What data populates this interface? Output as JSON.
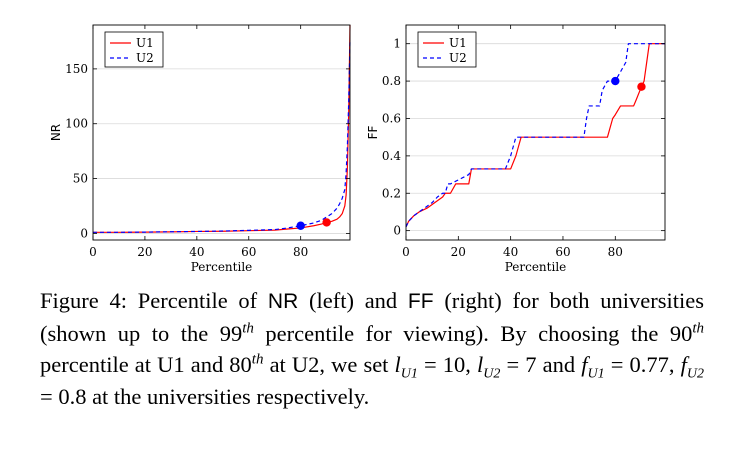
{
  "chart_data": [
    {
      "type": "line",
      "title": "",
      "xlabel": "Percentile",
      "ylabel": "NR",
      "xlim": [
        0,
        99
      ],
      "ylim": [
        -6,
        190
      ],
      "xticks": [
        0,
        20,
        40,
        60,
        80
      ],
      "yticks": [
        0,
        50,
        100,
        150
      ],
      "grid": "horizontal",
      "legend": "top-left",
      "series": [
        {
          "name": "U1",
          "color": "#ff0000",
          "dash": "solid",
          "x": [
            0,
            10,
            20,
            30,
            40,
            50,
            60,
            70,
            75,
            80,
            85,
            88,
            90,
            92,
            94,
            95,
            96,
            97,
            97.5,
            98,
            98.5,
            99
          ],
          "y": [
            1,
            1,
            1.2,
            1.4,
            1.8,
            2,
            2.5,
            3,
            4,
            5,
            7,
            8.5,
            10,
            11,
            13,
            15,
            18,
            25,
            35,
            60,
            110,
            190
          ]
        },
        {
          "name": "U2",
          "color": "#0000ff",
          "dash": "dashed",
          "x": [
            0,
            10,
            20,
            30,
            40,
            50,
            60,
            70,
            75,
            80,
            85,
            88,
            90,
            92,
            94,
            95,
            96,
            97,
            97.5,
            98,
            98.5,
            99
          ],
          "y": [
            1,
            1,
            1.2,
            1.5,
            1.8,
            2.2,
            2.8,
            3.5,
            5,
            7,
            9.5,
            12,
            15,
            18,
            23,
            27,
            32,
            40,
            55,
            80,
            120,
            175
          ]
        }
      ],
      "markers": [
        {
          "x": 80,
          "y": 7,
          "color": "#0000ff"
        },
        {
          "x": 90,
          "y": 10,
          "color": "#ff0000"
        }
      ]
    },
    {
      "type": "line",
      "title": "",
      "xlabel": "Percentile",
      "ylabel": "FF",
      "xlim": [
        0,
        99
      ],
      "ylim": [
        -0.05,
        1.1
      ],
      "xticks": [
        0,
        20,
        40,
        60,
        80
      ],
      "yticks": [
        0,
        0.2,
        0.4,
        0.6,
        0.8,
        1
      ],
      "ytick_labels": [
        "0",
        "0.2",
        "0.4",
        "0.6",
        "0.8",
        "1"
      ],
      "grid": "horizontal",
      "legend": "top-left",
      "series": [
        {
          "name": "U1",
          "color": "#ff0000",
          "dash": "solid",
          "x": [
            0,
            1,
            3,
            5,
            8,
            10,
            12,
            14,
            15,
            17,
            19,
            24,
            25,
            28,
            40,
            42,
            43,
            44,
            60,
            70,
            77,
            79,
            80,
            82,
            87,
            88,
            90,
            91,
            92,
            93,
            94,
            99
          ],
          "y": [
            0.02,
            0.05,
            0.08,
            0.1,
            0.12,
            0.14,
            0.16,
            0.18,
            0.2,
            0.2,
            0.25,
            0.25,
            0.33,
            0.33,
            0.33,
            0.4,
            0.45,
            0.5,
            0.5,
            0.5,
            0.5,
            0.6,
            0.62,
            0.667,
            0.667,
            0.7,
            0.77,
            0.8,
            0.9,
            1.0,
            1.0,
            1.0
          ]
        },
        {
          "name": "U2",
          "color": "#0000ff",
          "dash": "dashed",
          "x": [
            0,
            1,
            3,
            5,
            8,
            10,
            12,
            14,
            15,
            16,
            17,
            24,
            25,
            27,
            38,
            40,
            41,
            42,
            60,
            68,
            69,
            70,
            74,
            75,
            77,
            80,
            84,
            85,
            86,
            99
          ],
          "y": [
            0.02,
            0.05,
            0.08,
            0.1,
            0.13,
            0.15,
            0.18,
            0.2,
            0.2,
            0.25,
            0.25,
            0.3,
            0.33,
            0.33,
            0.33,
            0.4,
            0.45,
            0.5,
            0.5,
            0.5,
            0.6,
            0.667,
            0.667,
            0.75,
            0.8,
            0.8,
            0.9,
            1.0,
            1.0,
            1.0
          ]
        }
      ],
      "markers": [
        {
          "x": 80,
          "y": 0.8,
          "color": "#0000ff"
        },
        {
          "x": 90,
          "y": 0.77,
          "color": "#ff0000"
        }
      ]
    }
  ],
  "caption": {
    "t1": "Figure 4: Percentile of ",
    "nr": "NR",
    "t2": " (left) and ",
    "ff": "FF",
    "t3": " (right) for both universities (shown up to the 99",
    "sup1": "th",
    "t4": " percentile for viewing). By choosing the 90",
    "sup2": "th",
    "t5": " percentile at U1 and 80",
    "sup3": "th",
    "t6": " at U2, we set ",
    "l1": "l",
    "l1sub": "U1",
    "t7": " = 10, ",
    "l2": "l",
    "l2sub": "U2",
    "t8": " = 7 and ",
    "f1": "f",
    "f1sub": "U1",
    "t9": " = 0.77, ",
    "f2": "f",
    "f2sub": "U2",
    "t10": " = 0.8 at the universities respectively."
  }
}
